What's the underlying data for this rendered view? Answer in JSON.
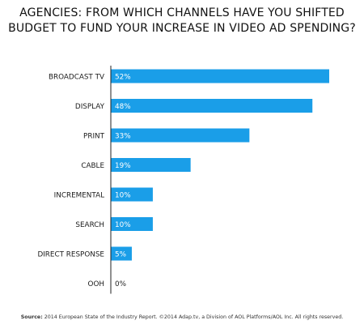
{
  "title_lines": [
    "AGENCIES: FROM WHICH CHANNELS HAVE YOU SHIFTED",
    "BUDGET TO FUND YOUR INCREASE IN VIDEO AD SPENDING?"
  ],
  "source": {
    "label": "Source:",
    "text": "2014 European State of the Industry Report. ©2014 Adap.tv, a Division of AOL Platforms/AOL Inc. All rights reserved."
  },
  "colors": {
    "bar": "#1a9ee8",
    "axis": "#222222",
    "label_inside": "#ffffff",
    "label_outside": "#222222"
  },
  "chart_data": {
    "type": "bar",
    "orientation": "horizontal",
    "title": "AGENCIES: FROM WHICH CHANNELS HAVE YOU SHIFTED BUDGET TO FUND YOUR INCREASE IN VIDEO AD SPENDING?",
    "categories": [
      "BROADCAST TV",
      "DISPLAY",
      "PRINT",
      "CABLE",
      "INCREMENTAL",
      "SEARCH",
      "DIRECT RESPONSE",
      "OOH"
    ],
    "values": [
      52,
      48,
      33,
      19,
      10,
      10,
      5,
      0
    ],
    "value_labels": [
      "52%",
      "48%",
      "33%",
      "19%",
      "10%",
      "10%",
      "5%",
      "0%"
    ],
    "unit": "%",
    "xlim": [
      0,
      52
    ],
    "grid": false,
    "legend": "none"
  }
}
